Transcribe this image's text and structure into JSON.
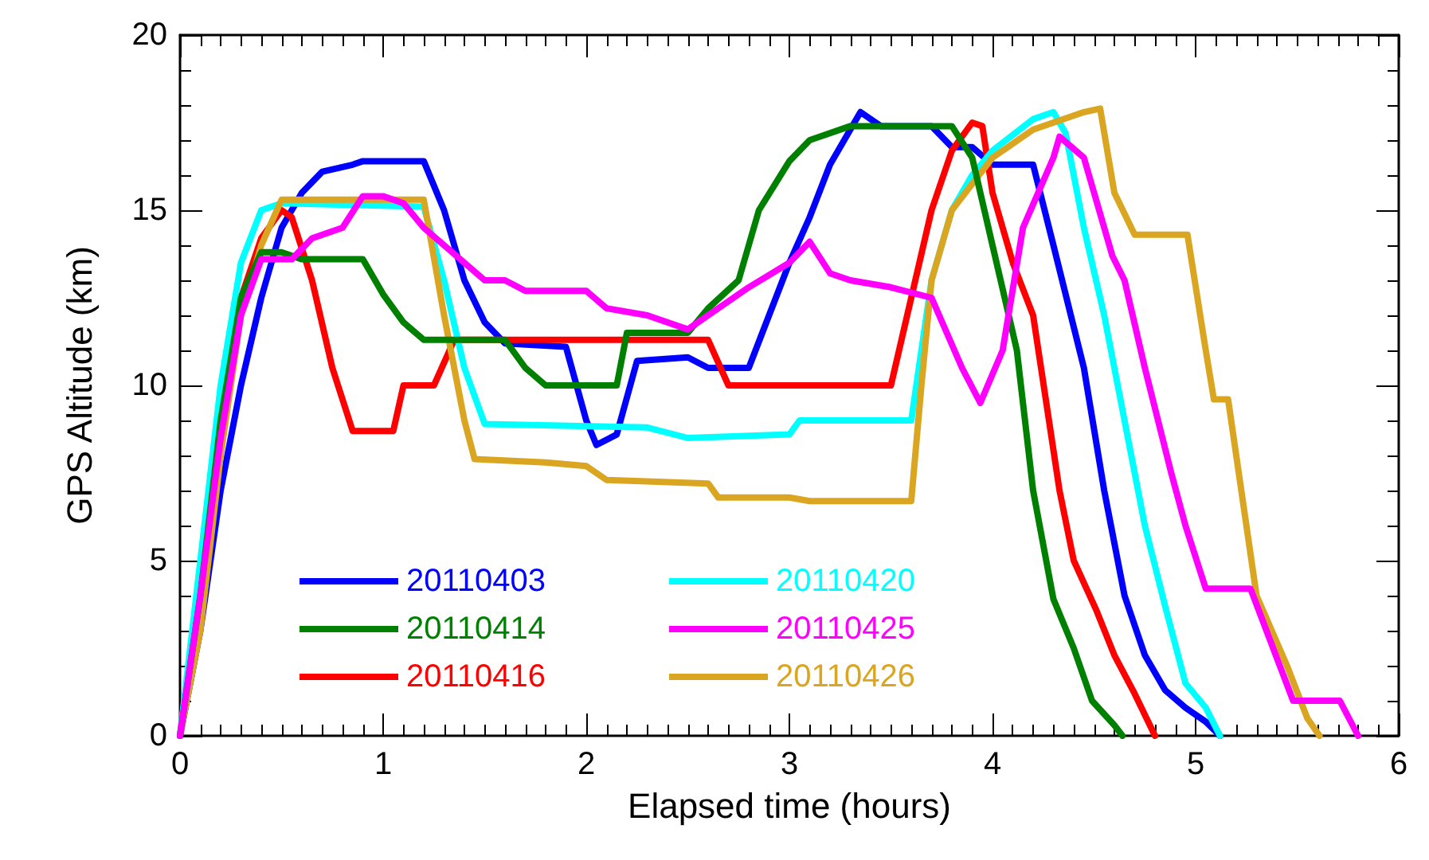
{
  "chart_data": {
    "type": "line",
    "xlabel": "Elapsed time (hours)",
    "ylabel": "GPS Altitude (km)",
    "xlim": [
      0,
      6
    ],
    "xticks": [
      0,
      1,
      2,
      3,
      4,
      5,
      6
    ],
    "ylim": [
      0,
      20
    ],
    "yticks": [
      0,
      5,
      10,
      15,
      20
    ],
    "grid": false,
    "legend": "bottom left",
    "marker": "none",
    "line_style": "solid",
    "series": [
      {
        "name": "20110403",
        "color": "#0000ff",
        "x": [
          0,
          0.1,
          0.2,
          0.3,
          0.4,
          0.5,
          0.6,
          0.7,
          0.85,
          0.9,
          1.2,
          1.3,
          1.4,
          1.5,
          1.6,
          1.9,
          2.0,
          2.05,
          2.15,
          2.25,
          2.5,
          2.6,
          2.8,
          2.9,
          3.0,
          3.1,
          3.2,
          3.35,
          3.45,
          3.7,
          3.8,
          3.9,
          4.0,
          4.2,
          4.3,
          4.45,
          4.55,
          4.65,
          4.75,
          4.85,
          4.95,
          5.05,
          5.12
        ],
        "values": [
          0,
          3,
          7,
          10,
          12.5,
          14.5,
          15.5,
          16.1,
          16.3,
          16.4,
          16.4,
          15,
          13,
          11.8,
          11.2,
          11.1,
          9,
          8.3,
          8.6,
          10.7,
          10.8,
          10.5,
          10.5,
          12,
          13.5,
          14.8,
          16.3,
          17.8,
          17.4,
          17.4,
          16.8,
          16.8,
          16.3,
          16.3,
          14,
          10.5,
          7,
          4,
          2.3,
          1.3,
          0.8,
          0.4,
          0
        ]
      },
      {
        "name": "20110414",
        "color": "#008000",
        "x": [
          0,
          0.1,
          0.2,
          0.3,
          0.4,
          0.5,
          0.6,
          0.9,
          1.0,
          1.1,
          1.2,
          1.6,
          1.7,
          1.8,
          2.15,
          2.2,
          2.5,
          2.6,
          2.75,
          2.85,
          3.0,
          3.1,
          3.3,
          3.8,
          3.9,
          4.0,
          4.12,
          4.2,
          4.3,
          4.4,
          4.49,
          4.6,
          4.64
        ],
        "values": [
          0,
          4,
          9,
          12.5,
          13.8,
          13.8,
          13.6,
          13.6,
          12.6,
          11.8,
          11.3,
          11.3,
          10.5,
          10,
          10,
          11.5,
          11.5,
          12.2,
          13,
          15,
          16.4,
          17,
          17.4,
          17.4,
          16.5,
          14,
          11,
          7,
          3.9,
          2.5,
          1,
          0.3,
          0
        ]
      },
      {
        "name": "20110416",
        "color": "#ff0000",
        "x": [
          0,
          0.1,
          0.2,
          0.3,
          0.4,
          0.5,
          0.55,
          0.65,
          0.75,
          0.85,
          1.05,
          1.1,
          1.25,
          1.35,
          2.6,
          2.7,
          3.5,
          3.6,
          3.7,
          3.8,
          3.9,
          3.95,
          4.0,
          4.1,
          4.2,
          4.33,
          4.4,
          4.51,
          4.6,
          4.7,
          4.8
        ],
        "values": [
          0,
          4.5,
          9.5,
          12.5,
          14.2,
          15,
          14.8,
          13,
          10.5,
          8.7,
          8.7,
          10,
          10,
          11.3,
          11.3,
          10,
          10,
          12.5,
          15,
          16.7,
          17.5,
          17.4,
          15.5,
          13.5,
          12,
          7,
          5,
          3.6,
          2.3,
          1.2,
          0
        ]
      },
      {
        "name": "20110420",
        "color": "#00ffff",
        "x": [
          0,
          0.1,
          0.2,
          0.3,
          0.4,
          0.5,
          1.2,
          1.3,
          1.4,
          1.5,
          2.3,
          2.5,
          3.0,
          3.05,
          3.6,
          3.7,
          3.8,
          3.9,
          4.0,
          4.2,
          4.3,
          4.36,
          4.45,
          4.55,
          4.65,
          4.75,
          4.85,
          4.95,
          5.05,
          5.12
        ],
        "values": [
          0,
          5,
          10,
          13.5,
          15,
          15.2,
          15.1,
          13,
          10.5,
          8.9,
          8.8,
          8.5,
          8.6,
          9,
          9,
          13,
          15,
          16,
          16.7,
          17.6,
          17.8,
          17.2,
          14.5,
          12,
          9,
          6,
          3.7,
          1.5,
          0.8,
          0
        ]
      },
      {
        "name": "20110425",
        "color": "#ff00ff",
        "x": [
          0,
          0.1,
          0.2,
          0.3,
          0.4,
          0.55,
          0.65,
          0.8,
          0.9,
          1.0,
          1.1,
          1.2,
          1.3,
          1.4,
          1.5,
          1.6,
          1.7,
          2.0,
          2.1,
          2.3,
          2.5,
          2.6,
          2.8,
          3.0,
          3.1,
          3.2,
          3.3,
          3.5,
          3.7,
          3.85,
          3.94,
          4.05,
          4.15,
          4.3,
          4.33,
          4.45,
          4.59,
          4.65,
          4.75,
          4.88,
          4.95,
          5.05,
          5.27,
          5.48,
          5.71,
          5.8
        ],
        "values": [
          0,
          4,
          8.5,
          12,
          13.6,
          13.6,
          14.2,
          14.5,
          15.4,
          15.4,
          15.2,
          14.5,
          14,
          13.5,
          13,
          13,
          12.7,
          12.7,
          12.2,
          12,
          11.6,
          12,
          12.8,
          13.5,
          14.1,
          13.2,
          13,
          12.8,
          12.5,
          10.5,
          9.5,
          11,
          14.5,
          16.5,
          17.1,
          16.5,
          13.7,
          13,
          10.5,
          7.5,
          6,
          4.2,
          4.2,
          1,
          1,
          0
        ]
      },
      {
        "name": "20110426",
        "color": "#daa520",
        "x": [
          0,
          0.1,
          0.2,
          0.3,
          0.4,
          0.5,
          1.2,
          1.3,
          1.4,
          1.45,
          1.8,
          2.0,
          2.1,
          2.6,
          2.65,
          3.0,
          3.1,
          3.6,
          3.65,
          3.7,
          3.8,
          4.0,
          4.2,
          4.45,
          4.53,
          4.6,
          4.7,
          4.96,
          5.05,
          5.09,
          5.16,
          5.3,
          5.45,
          5.55,
          5.61
        ],
        "values": [
          0,
          3,
          8,
          12,
          14,
          15.3,
          15.3,
          12,
          9,
          7.9,
          7.8,
          7.7,
          7.3,
          7.2,
          6.8,
          6.8,
          6.7,
          6.7,
          10,
          13,
          15,
          16.5,
          17.3,
          17.8,
          17.9,
          15.5,
          14.3,
          14.3,
          11,
          9.6,
          9.6,
          4,
          2,
          0.5,
          0
        ]
      }
    ]
  }
}
